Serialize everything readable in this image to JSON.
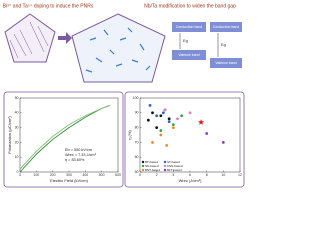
{
  "header": {
    "left_title": "Bi³⁺ and Ta⁵⁺ doping to induce the PNRs",
    "right_title": "Nb/Ta modification to widen the band gap"
  },
  "bands": [
    {
      "conduction": "Conduction band",
      "valence": "Valence band",
      "gap": "Eg"
    },
    {
      "conduction": "Conduction band",
      "valence": "Valence band",
      "gap": "Eg"
    }
  ],
  "charts": [
    {
      "type": "line",
      "xlabel": "Electric Field (kV/cm)",
      "ylabel": "Polarization (μC/cm²)",
      "xlim": [
        0,
        600
      ],
      "xticks": [
        0,
        100,
        200,
        300,
        400,
        500,
        600
      ],
      "ylim": [
        0,
        50
      ],
      "yticks": [
        0,
        10,
        20,
        30,
        40,
        50
      ],
      "annotations": [
        "Eb = 550 kV/cm",
        "Wrec = 7.33 J/cm³",
        "η = 83.60%"
      ],
      "series": [
        {
          "color": "#2e8b3a",
          "x": [
            0,
            100,
            200,
            300,
            400,
            500,
            550
          ],
          "values": [
            0,
            12,
            22,
            30,
            37,
            43,
            45
          ]
        },
        {
          "color": "#7cc36b",
          "x": [
            0,
            100,
            200,
            300,
            400,
            500,
            550
          ],
          "values": [
            2,
            14,
            24,
            32,
            38,
            43,
            45
          ]
        }
      ]
    },
    {
      "type": "scatter",
      "xlabel": "Wrec (J/cm³)",
      "ylabel": "η (%)",
      "xlim": [
        0,
        12
      ],
      "xticks": [
        0,
        2,
        4,
        6,
        8,
        10,
        12
      ],
      "ylim": [
        50,
        100
      ],
      "yticks": [
        50,
        60,
        70,
        80,
        90,
        100
      ],
      "series": [
        {
          "name": "BT-based",
          "color": "#111111",
          "x": [
            1,
            1.5,
            2,
            2.5,
            3,
            3.5
          ],
          "values": [
            85,
            90,
            80,
            88,
            92,
            86
          ]
        },
        {
          "name": "ST-based",
          "color": "#2b5fd9",
          "x": [
            1.2,
            2,
            2.8,
            3.5
          ],
          "values": [
            95,
            88,
            90,
            84
          ]
        },
        {
          "name": "NN-based",
          "color": "#2aa84a",
          "x": [
            2.5,
            4,
            5
          ],
          "values": [
            78,
            82,
            88
          ]
        },
        {
          "name": "KNN-based",
          "color": "#e080c0",
          "x": [
            3,
            4.5,
            6
          ],
          "values": [
            92,
            86,
            90
          ]
        },
        {
          "name": "BNT-based",
          "color": "#f08a24",
          "x": [
            1.5,
            2.5,
            3.2,
            4
          ],
          "values": [
            70,
            75,
            68,
            80
          ]
        },
        {
          "name": "BFT-based",
          "color": "#8a3ab9",
          "x": [
            8,
            10
          ],
          "values": [
            76,
            70
          ]
        },
        {
          "color": "#e02020",
          "x": [
            7.33
          ],
          "values": [
            83.6
          ]
        }
      ]
    }
  ]
}
